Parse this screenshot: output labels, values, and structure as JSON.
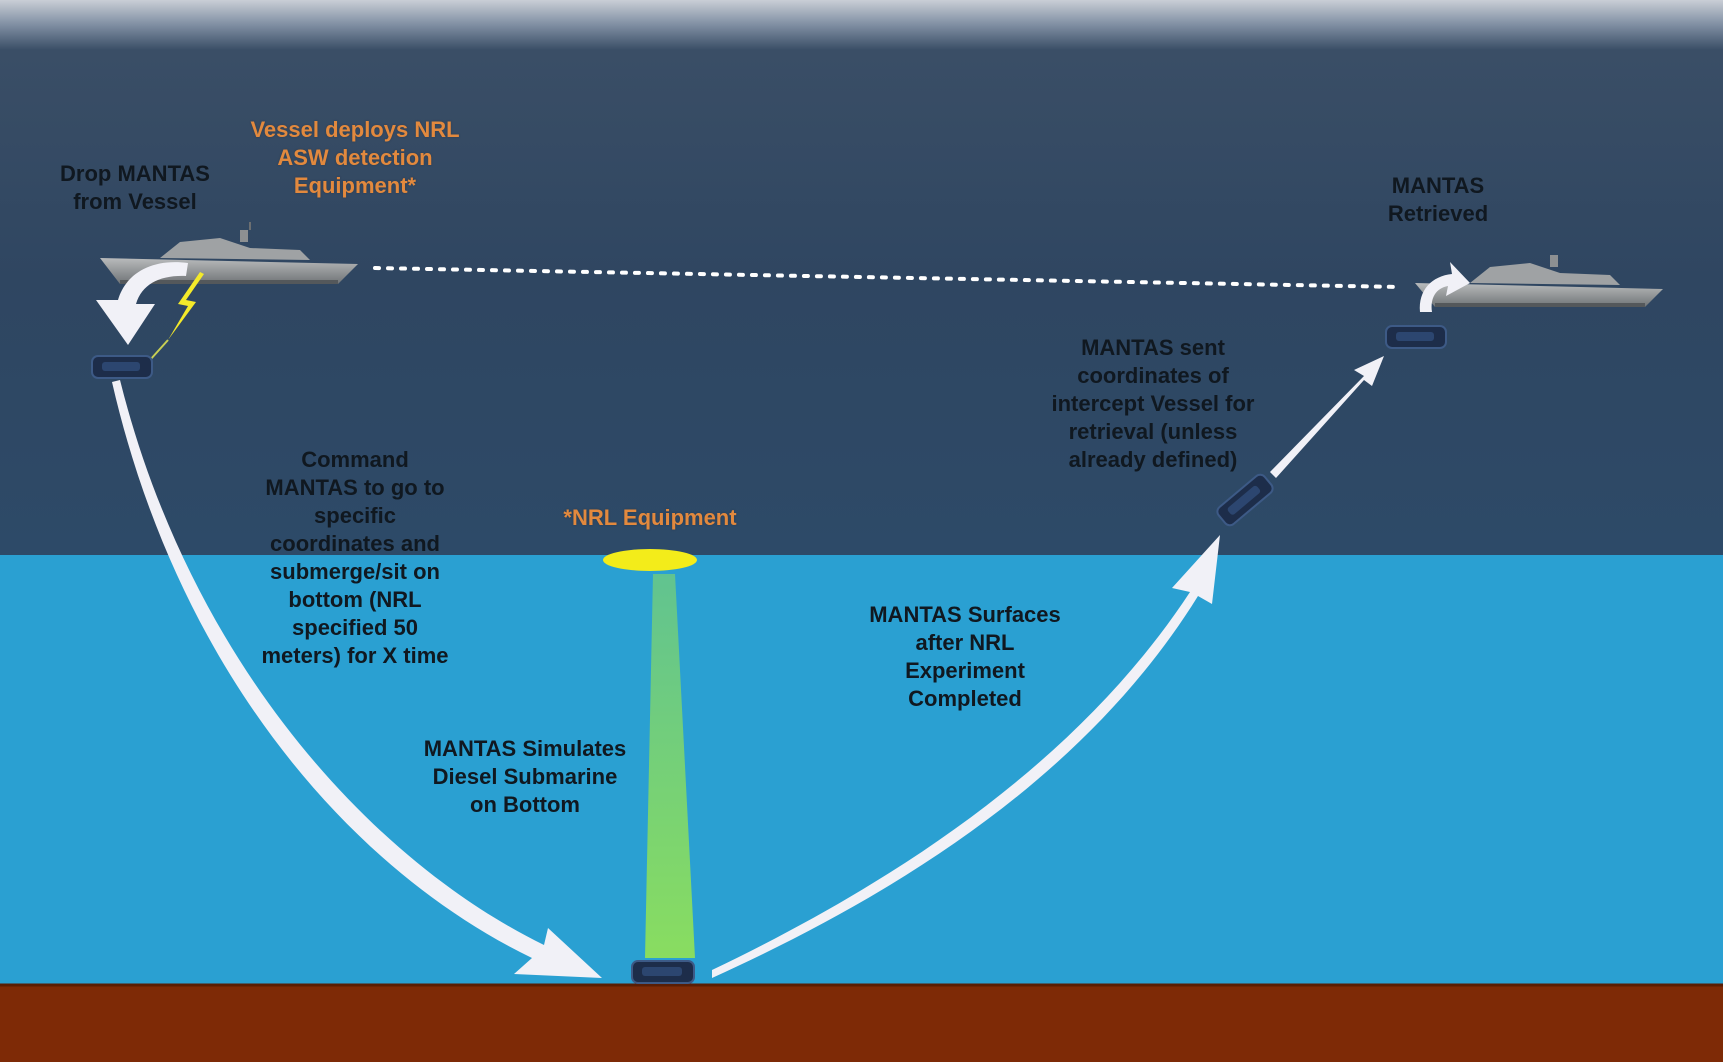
{
  "colors": {
    "sky": "#c9ced6",
    "sea_surface_top": "#33475f",
    "sea_surface_bottom": "#2e4a67",
    "underwater": "#2aa0d2",
    "seabed": "#7e2a06",
    "arrow_fill": "#f1f1f7",
    "dotted_line": "#ffffff",
    "equipment_disc": "#f3ec1a",
    "sonar_beam": "#8ee05a",
    "label_orange": "#e2893e",
    "vehicle": "#1d2d4a"
  },
  "labels": {
    "drop": "Drop MANTAS from Vessel",
    "deploys": "Vessel deploys NRL ASW detection Equipment*",
    "retrieved": "MANTAS Retrieved",
    "sent": "MANTAS sent coordinates of intercept Vessel for retrieval (unless already defined)",
    "command": "Command MANTAS to go to specific coordinates and submerge/sit on bottom (NRL specified 50 meters) for X time",
    "nrl_equipment": "*NRL Equipment",
    "surfaces": "MANTAS Surfaces after NRL Experiment Completed",
    "simulates": "MANTAS Simulates Diesel Submarine on Bottom"
  },
  "icons": {
    "ship_left": "littoral-combat-ship",
    "ship_right": "littoral-combat-ship",
    "lightning": "lightning-bolt-icon",
    "vehicle": "mantas-usv-icon"
  }
}
